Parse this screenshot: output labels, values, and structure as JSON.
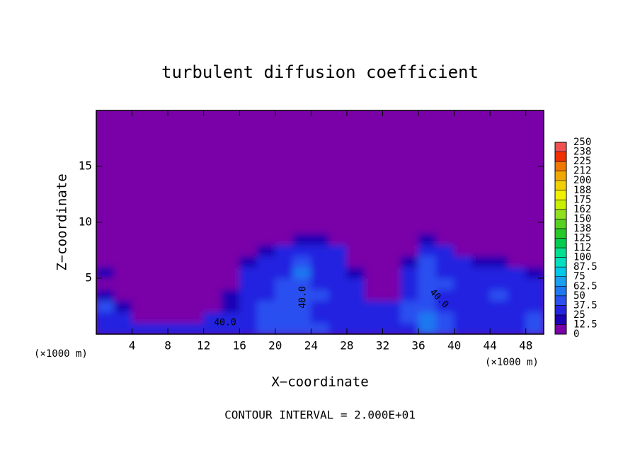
{
  "chart_data": {
    "type": "contour",
    "title": "turbulent diffusion coefficient",
    "xlabel": "X−coordinate",
    "ylabel": "Z−coordinate",
    "x_unit": "(×1000 m)",
    "x_unit_right": "(×1000 m)",
    "footnote": "CONTOUR INTERVAL = 2.000E+01",
    "annotations": [
      "40.0",
      "40.0",
      "40.0"
    ],
    "xlim": [
      0,
      50
    ],
    "ylim": [
      0,
      20
    ],
    "xticks": [
      4,
      8,
      12,
      16,
      20,
      24,
      28,
      32,
      36,
      40,
      44,
      48
    ],
    "yticks": [
      5,
      10,
      15
    ],
    "levels": [
      0,
      12.5,
      25,
      37.5,
      50,
      62.5,
      75,
      87.5,
      100,
      112,
      125,
      138,
      150,
      162,
      175,
      188,
      200,
      212,
      225,
      238,
      250
    ],
    "colors": [
      "#7a00a8",
      "#1c00b4",
      "#2424e0",
      "#2a50f0",
      "#1e78f0",
      "#1aa0f0",
      "#00c8e8",
      "#00e0c0",
      "#00e090",
      "#00cc50",
      "#28c828",
      "#58d020",
      "#90e020",
      "#c8f000",
      "#f0f000",
      "#f0d000",
      "#f0a800",
      "#f07800",
      "#f03000",
      "#f05050",
      "#f08c8c"
    ],
    "x": [
      1,
      3,
      5,
      7,
      9,
      11,
      13,
      15,
      17,
      19,
      21,
      23,
      25,
      27,
      29,
      31,
      33,
      35,
      37,
      39,
      41,
      43,
      45,
      47,
      49
    ],
    "y": [
      0.5,
      1.5,
      2.5,
      3.5,
      4.5,
      5.5,
      6.5,
      7.5,
      8.5,
      9.5
    ],
    "values": [
      [
        30,
        35,
        30,
        25,
        25,
        30,
        30,
        30,
        35,
        45,
        40,
        45,
        40,
        30,
        30,
        30,
        30,
        30,
        55,
        45,
        35,
        30,
        30,
        35,
        40
      ],
      [
        35,
        25,
        10,
        10,
        5,
        10,
        25,
        30,
        35,
        40,
        45,
        40,
        30,
        25,
        30,
        30,
        30,
        45,
        50,
        40,
        30,
        30,
        30,
        35,
        40
      ],
      [
        40,
        20,
        5,
        5,
        5,
        5,
        5,
        20,
        35,
        45,
        40,
        40,
        35,
        35,
        30,
        30,
        30,
        40,
        40,
        30,
        30,
        30,
        35,
        35,
        30
      ],
      [
        20,
        10,
        5,
        5,
        5,
        5,
        5,
        15,
        35,
        35,
        40,
        45,
        40,
        35,
        30,
        10,
        10,
        35,
        40,
        35,
        30,
        35,
        40,
        30,
        30
      ],
      [
        10,
        5,
        5,
        5,
        5,
        5,
        5,
        10,
        35,
        35,
        40,
        40,
        35,
        35,
        30,
        5,
        5,
        30,
        40,
        40,
        30,
        35,
        35,
        30,
        25
      ],
      [
        15,
        5,
        5,
        5,
        5,
        5,
        5,
        5,
        30,
        35,
        35,
        50,
        35,
        30,
        20,
        5,
        5,
        25,
        40,
        35,
        30,
        35,
        30,
        25,
        20
      ],
      [
        5,
        5,
        5,
        5,
        5,
        5,
        5,
        5,
        20,
        30,
        35,
        45,
        35,
        25,
        10,
        5,
        5,
        15,
        40,
        30,
        25,
        20,
        15,
        10,
        5
      ],
      [
        5,
        5,
        5,
        5,
        5,
        5,
        5,
        5,
        5,
        15,
        30,
        30,
        30,
        25,
        5,
        5,
        5,
        5,
        30,
        25,
        10,
        5,
        5,
        5,
        5
      ],
      [
        5,
        5,
        5,
        5,
        5,
        5,
        5,
        5,
        5,
        5,
        10,
        20,
        20,
        10,
        5,
        5,
        5,
        5,
        15,
        10,
        5,
        5,
        5,
        5,
        5
      ],
      [
        5,
        5,
        5,
        5,
        5,
        5,
        5,
        5,
        5,
        5,
        5,
        5,
        5,
        5,
        5,
        5,
        5,
        5,
        5,
        5,
        5,
        5,
        5,
        5,
        5
      ]
    ]
  }
}
